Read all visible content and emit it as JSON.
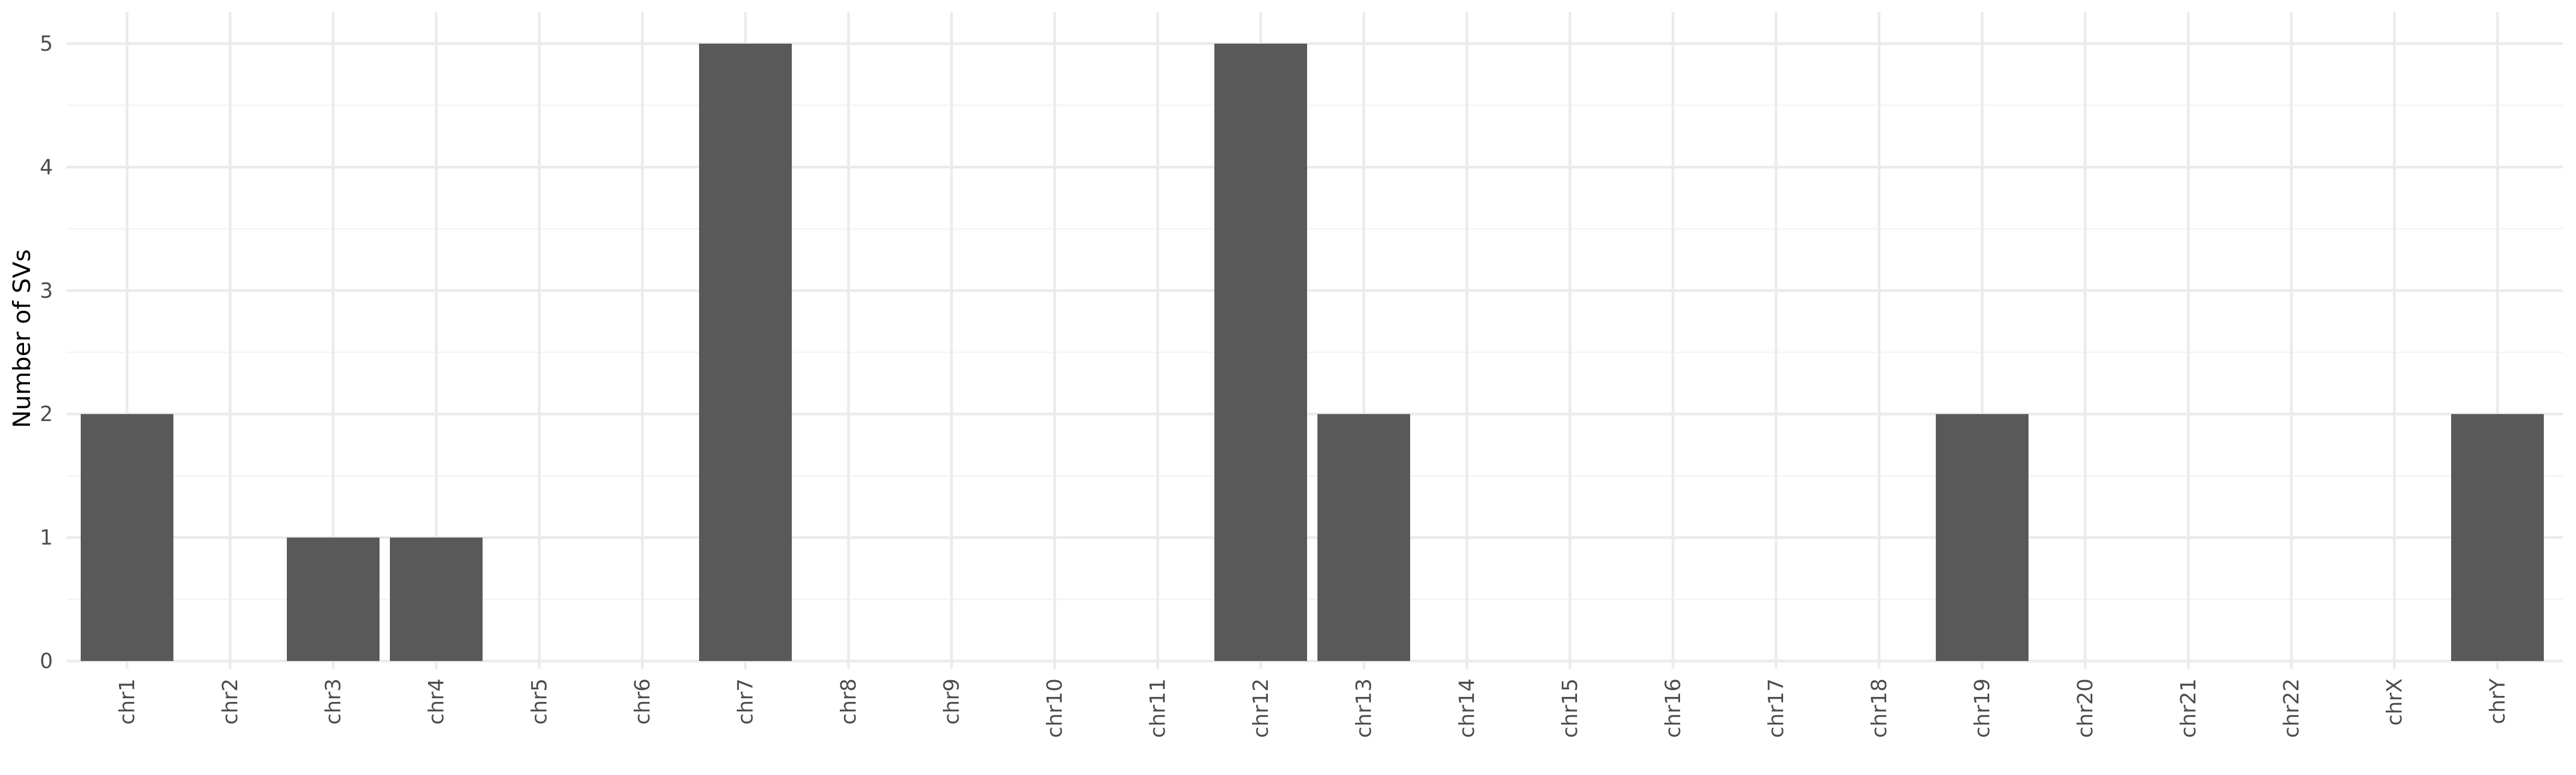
{
  "chart_data": {
    "type": "bar",
    "title": "",
    "xlabel": "",
    "ylabel": "Number of SVs",
    "categories": [
      "chr1",
      "chr2",
      "chr3",
      "chr4",
      "chr5",
      "chr6",
      "chr7",
      "chr8",
      "chr9",
      "chr10",
      "chr11",
      "chr12",
      "chr13",
      "chr14",
      "chr15",
      "chr16",
      "chr17",
      "chr18",
      "chr19",
      "chr20",
      "chr21",
      "chr22",
      "chrX",
      "chrY"
    ],
    "values": [
      2,
      0,
      1,
      1,
      0,
      0,
      5,
      0,
      0,
      0,
      0,
      5,
      2,
      0,
      0,
      0,
      0,
      0,
      2,
      0,
      0,
      0,
      0,
      2
    ],
    "ylim": [
      0,
      5
    ],
    "yticks": [
      0,
      1,
      2,
      3,
      4,
      5
    ],
    "grid": true,
    "legend": "none",
    "colors": {
      "bar": "#595959",
      "grid_major": "#ebebeb",
      "grid_minor": "#f5f5f5",
      "tick_text": "#4d4d4d",
      "axis_title": "#000000",
      "background": "#ffffff"
    }
  }
}
